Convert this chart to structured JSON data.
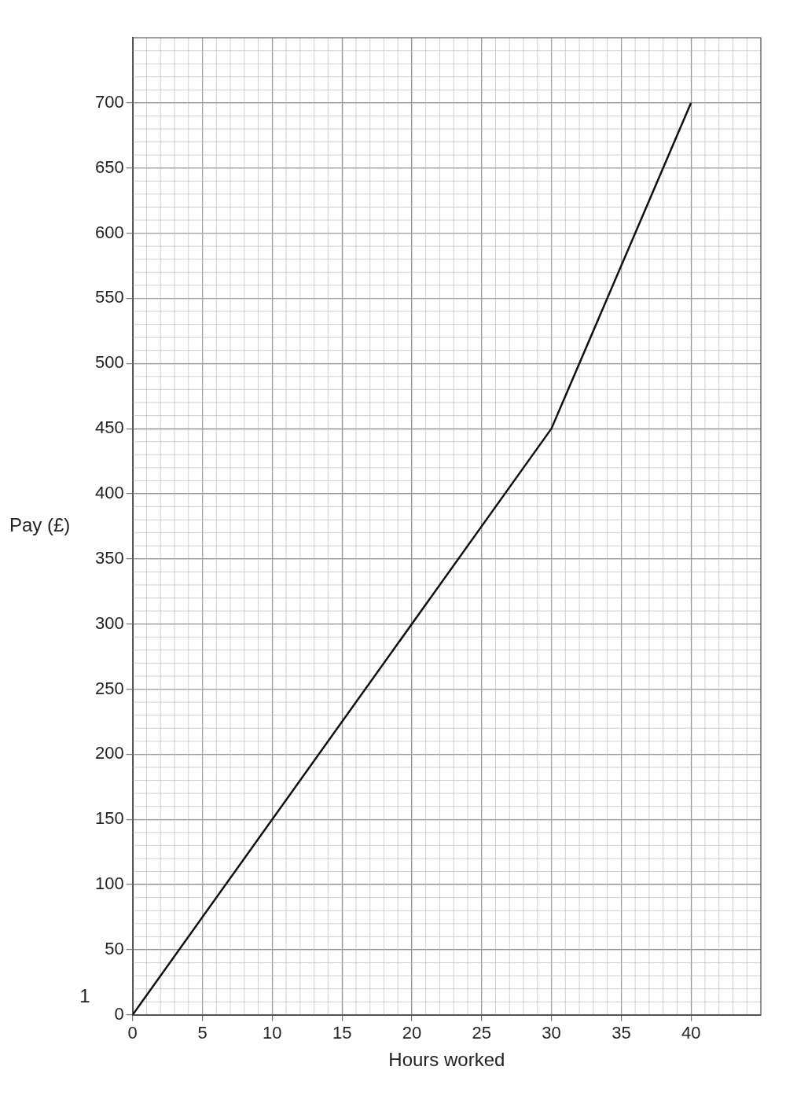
{
  "chart_data": {
    "type": "line",
    "xlabel": "Hours worked",
    "ylabel": "Pay (£)",
    "x": [
      0,
      30,
      40
    ],
    "series": [
      {
        "color": "#111111",
        "values": [
          0,
          450,
          700
        ]
      }
    ],
    "xlim": [
      0,
      45
    ],
    "xticks": [
      0,
      5,
      10,
      15,
      20,
      25,
      30,
      35,
      40
    ],
    "ylim": [
      0,
      750
    ],
    "yticks": [
      0,
      50,
      100,
      150,
      200,
      250,
      300,
      350,
      400,
      450,
      500,
      550,
      600,
      650,
      700
    ],
    "grid": true,
    "legend": false,
    "marker": "none",
    "line_style": "solid",
    "annotations": [
      "1"
    ]
  }
}
